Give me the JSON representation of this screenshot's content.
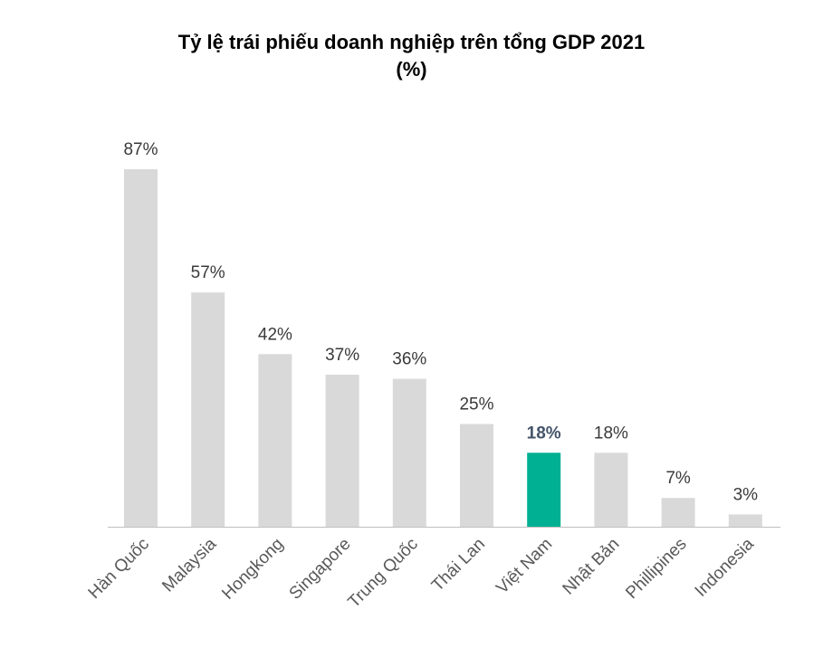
{
  "chart_data": {
    "type": "bar",
    "title_line1": "Tỷ lệ trái phiếu doanh nghiệp trên tổng GDP 2021",
    "title_line2": "(%)",
    "categories": [
      "Hàn Quốc",
      "Malaysia",
      "Hongkong",
      "Singapore",
      "Trung Quốc",
      "Thái Lan",
      "Việt Nam",
      "Nhật Bản",
      "Phillipines",
      "Indonesia"
    ],
    "values": [
      87,
      57,
      42,
      37,
      36,
      25,
      18,
      18,
      7,
      3
    ],
    "value_labels": [
      "87%",
      "57%",
      "42%",
      "37%",
      "36%",
      "25%",
      "18%",
      "18%",
      "7%",
      "3%"
    ],
    "highlight_index": 6,
    "colors": {
      "bar": "#d9d9d9",
      "highlight": "#00b092",
      "axis": "#bfbfbf"
    },
    "ylim": [
      0,
      87
    ],
    "grid": false,
    "legend": "none"
  }
}
